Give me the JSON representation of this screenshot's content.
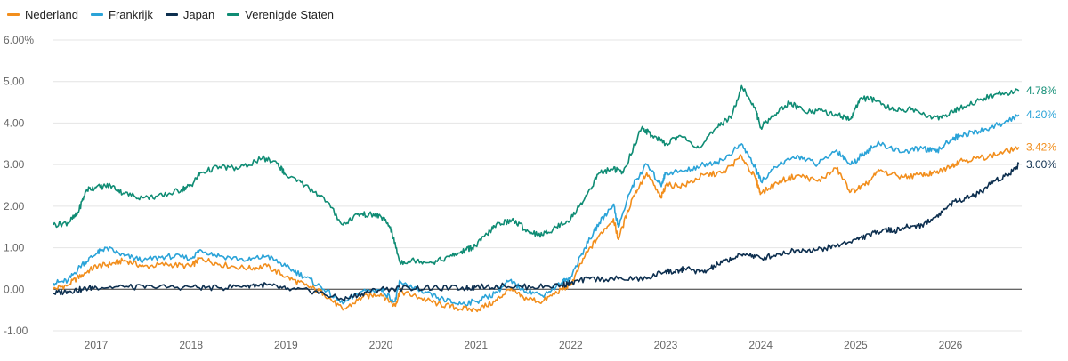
{
  "chart_data": {
    "type": "line",
    "title": "",
    "xlabel": "",
    "ylabel": "",
    "legend_position": "top-left",
    "grid": true,
    "x_range": [
      2016.55,
      2026.75
    ],
    "ylim": [
      -1.0,
      6.0
    ],
    "y_ticks": [
      {
        "value": 6.0,
        "label": "6.00%"
      },
      {
        "value": 5.0,
        "label": "5.00"
      },
      {
        "value": 4.0,
        "label": "4.00"
      },
      {
        "value": 3.0,
        "label": "3.00"
      },
      {
        "value": 2.0,
        "label": "2.00"
      },
      {
        "value": 1.0,
        "label": "1.00"
      },
      {
        "value": 0.0,
        "label": "0.00"
      },
      {
        "value": -1.0,
        "label": "-1.00"
      }
    ],
    "x_ticks": [
      {
        "value": 2017.0,
        "label": "2017"
      },
      {
        "value": 2018.0,
        "label": "2018"
      },
      {
        "value": 2019.0,
        "label": "2019"
      },
      {
        "value": 2020.0,
        "label": "2020"
      },
      {
        "value": 2021.0,
        "label": "2021"
      },
      {
        "value": 2022.0,
        "label": "2022"
      },
      {
        "value": 2023.0,
        "label": "2023"
      },
      {
        "value": 2024.0,
        "label": "2024"
      },
      {
        "value": 2025.0,
        "label": "2025"
      },
      {
        "value": 2026.0,
        "label": "2026"
      }
    ],
    "series": [
      {
        "name": "Nederland",
        "color": "#f28e1c",
        "end_label": "3.42%",
        "points": [
          [
            2016.55,
            0.0
          ],
          [
            2016.7,
            0.1
          ],
          [
            2016.85,
            0.35
          ],
          [
            2017.0,
            0.55
          ],
          [
            2017.15,
            0.6
          ],
          [
            2017.3,
            0.7
          ],
          [
            2017.5,
            0.55
          ],
          [
            2017.75,
            0.6
          ],
          [
            2018.0,
            0.55
          ],
          [
            2018.1,
            0.75
          ],
          [
            2018.3,
            0.6
          ],
          [
            2018.6,
            0.5
          ],
          [
            2018.8,
            0.55
          ],
          [
            2019.0,
            0.3
          ],
          [
            2019.2,
            0.1
          ],
          [
            2019.4,
            -0.1
          ],
          [
            2019.6,
            -0.5
          ],
          [
            2019.8,
            -0.2
          ],
          [
            2020.0,
            -0.1
          ],
          [
            2020.15,
            -0.4
          ],
          [
            2020.2,
            -0.05
          ],
          [
            2020.4,
            -0.2
          ],
          [
            2020.6,
            -0.35
          ],
          [
            2020.8,
            -0.45
          ],
          [
            2021.0,
            -0.5
          ],
          [
            2021.2,
            -0.3
          ],
          [
            2021.35,
            0.0
          ],
          [
            2021.5,
            -0.2
          ],
          [
            2021.7,
            -0.3
          ],
          [
            2021.9,
            0.0
          ],
          [
            2022.0,
            0.1
          ],
          [
            2022.15,
            0.8
          ],
          [
            2022.3,
            1.3
          ],
          [
            2022.45,
            1.7
          ],
          [
            2022.5,
            1.2
          ],
          [
            2022.65,
            2.2
          ],
          [
            2022.8,
            2.8
          ],
          [
            2022.95,
            2.2
          ],
          [
            2023.0,
            2.5
          ],
          [
            2023.2,
            2.5
          ],
          [
            2023.4,
            2.75
          ],
          [
            2023.6,
            2.8
          ],
          [
            2023.8,
            3.2
          ],
          [
            2023.95,
            2.65
          ],
          [
            2024.0,
            2.3
          ],
          [
            2024.2,
            2.6
          ],
          [
            2024.4,
            2.75
          ],
          [
            2024.6,
            2.6
          ],
          [
            2024.8,
            2.9
          ],
          [
            2024.95,
            2.35
          ],
          [
            2025.1,
            2.5
          ],
          [
            2025.25,
            2.85
          ],
          [
            2025.5,
            2.7
          ],
          [
            2025.7,
            2.75
          ],
          [
            2025.85,
            2.8
          ],
          [
            2026.0,
            2.95
          ],
          [
            2026.1,
            3.1
          ],
          [
            2026.3,
            3.15
          ],
          [
            2026.5,
            3.25
          ],
          [
            2026.72,
            3.42
          ]
        ]
      },
      {
        "name": "Frankrijk",
        "color": "#2aa3d8",
        "end_label": "4.20%",
        "points": [
          [
            2016.55,
            0.15
          ],
          [
            2016.7,
            0.2
          ],
          [
            2016.85,
            0.6
          ],
          [
            2017.0,
            0.85
          ],
          [
            2017.1,
            1.0
          ],
          [
            2017.3,
            0.8
          ],
          [
            2017.5,
            0.7
          ],
          [
            2017.75,
            0.8
          ],
          [
            2018.0,
            0.75
          ],
          [
            2018.1,
            0.95
          ],
          [
            2018.3,
            0.8
          ],
          [
            2018.6,
            0.7
          ],
          [
            2018.8,
            0.8
          ],
          [
            2019.0,
            0.55
          ],
          [
            2019.2,
            0.3
          ],
          [
            2019.4,
            0.0
          ],
          [
            2019.6,
            -0.35
          ],
          [
            2019.8,
            -0.05
          ],
          [
            2020.0,
            0.0
          ],
          [
            2020.15,
            -0.3
          ],
          [
            2020.2,
            0.2
          ],
          [
            2020.4,
            -0.05
          ],
          [
            2020.6,
            -0.2
          ],
          [
            2020.8,
            -0.35
          ],
          [
            2021.0,
            -0.3
          ],
          [
            2021.2,
            -0.1
          ],
          [
            2021.35,
            0.2
          ],
          [
            2021.5,
            0.0
          ],
          [
            2021.7,
            -0.15
          ],
          [
            2021.9,
            0.15
          ],
          [
            2022.0,
            0.3
          ],
          [
            2022.15,
            1.0
          ],
          [
            2022.3,
            1.6
          ],
          [
            2022.45,
            2.05
          ],
          [
            2022.5,
            1.5
          ],
          [
            2022.65,
            2.5
          ],
          [
            2022.8,
            3.0
          ],
          [
            2022.95,
            2.5
          ],
          [
            2023.0,
            2.8
          ],
          [
            2023.2,
            2.85
          ],
          [
            2023.4,
            3.0
          ],
          [
            2023.6,
            3.1
          ],
          [
            2023.8,
            3.5
          ],
          [
            2023.95,
            2.9
          ],
          [
            2024.0,
            2.6
          ],
          [
            2024.2,
            3.0
          ],
          [
            2024.4,
            3.2
          ],
          [
            2024.6,
            3.0
          ],
          [
            2024.8,
            3.35
          ],
          [
            2024.95,
            3.0
          ],
          [
            2025.1,
            3.3
          ],
          [
            2025.25,
            3.5
          ],
          [
            2025.5,
            3.3
          ],
          [
            2025.7,
            3.4
          ],
          [
            2025.85,
            3.3
          ],
          [
            2026.0,
            3.6
          ],
          [
            2026.1,
            3.7
          ],
          [
            2026.3,
            3.8
          ],
          [
            2026.5,
            3.95
          ],
          [
            2026.72,
            4.2
          ]
        ]
      },
      {
        "name": "Japan",
        "color": "#0d2f4f",
        "end_label": "3.00%",
        "points": [
          [
            2016.55,
            -0.1
          ],
          [
            2016.7,
            -0.05
          ],
          [
            2016.85,
            0.0
          ],
          [
            2017.0,
            0.05
          ],
          [
            2017.3,
            0.05
          ],
          [
            2017.6,
            0.05
          ],
          [
            2018.0,
            0.05
          ],
          [
            2018.3,
            0.03
          ],
          [
            2018.6,
            0.1
          ],
          [
            2018.8,
            0.1
          ],
          [
            2019.0,
            0.0
          ],
          [
            2019.3,
            -0.05
          ],
          [
            2019.6,
            -0.25
          ],
          [
            2019.8,
            -0.1
          ],
          [
            2020.0,
            0.0
          ],
          [
            2020.3,
            0.03
          ],
          [
            2020.6,
            0.03
          ],
          [
            2020.9,
            0.03
          ],
          [
            2021.0,
            0.05
          ],
          [
            2021.3,
            0.08
          ],
          [
            2021.6,
            0.05
          ],
          [
            2021.9,
            0.1
          ],
          [
            2022.0,
            0.15
          ],
          [
            2022.2,
            0.25
          ],
          [
            2022.5,
            0.25
          ],
          [
            2022.8,
            0.25
          ],
          [
            2023.0,
            0.45
          ],
          [
            2023.1,
            0.4
          ],
          [
            2023.2,
            0.5
          ],
          [
            2023.4,
            0.4
          ],
          [
            2023.55,
            0.6
          ],
          [
            2023.7,
            0.75
          ],
          [
            2023.85,
            0.85
          ],
          [
            2024.0,
            0.75
          ],
          [
            2024.2,
            0.85
          ],
          [
            2024.4,
            0.95
          ],
          [
            2024.6,
            0.95
          ],
          [
            2024.8,
            1.05
          ],
          [
            2025.0,
            1.2
          ],
          [
            2025.15,
            1.3
          ],
          [
            2025.3,
            1.45
          ],
          [
            2025.4,
            1.4
          ],
          [
            2025.55,
            1.5
          ],
          [
            2025.7,
            1.55
          ],
          [
            2025.85,
            1.75
          ],
          [
            2026.0,
            2.05
          ],
          [
            2026.15,
            2.2
          ],
          [
            2026.3,
            2.3
          ],
          [
            2026.45,
            2.6
          ],
          [
            2026.6,
            2.75
          ],
          [
            2026.72,
            3.0
          ]
        ]
      },
      {
        "name": "Verenigde Staten",
        "color": "#0f8c74",
        "end_label": "4.78%",
        "points": [
          [
            2016.55,
            1.55
          ],
          [
            2016.7,
            1.6
          ],
          [
            2016.8,
            1.8
          ],
          [
            2016.9,
            2.4
          ],
          [
            2017.0,
            2.45
          ],
          [
            2017.15,
            2.5
          ],
          [
            2017.3,
            2.3
          ],
          [
            2017.5,
            2.2
          ],
          [
            2017.7,
            2.25
          ],
          [
            2017.9,
            2.4
          ],
          [
            2018.0,
            2.5
          ],
          [
            2018.1,
            2.8
          ],
          [
            2018.3,
            2.95
          ],
          [
            2018.5,
            2.9
          ],
          [
            2018.75,
            3.15
          ],
          [
            2018.9,
            3.05
          ],
          [
            2019.0,
            2.75
          ],
          [
            2019.2,
            2.5
          ],
          [
            2019.4,
            2.2
          ],
          [
            2019.6,
            1.55
          ],
          [
            2019.75,
            1.8
          ],
          [
            2019.9,
            1.8
          ],
          [
            2020.0,
            1.75
          ],
          [
            2020.1,
            1.5
          ],
          [
            2020.2,
            0.65
          ],
          [
            2020.35,
            0.7
          ],
          [
            2020.55,
            0.65
          ],
          [
            2020.75,
            0.8
          ],
          [
            2020.9,
            0.95
          ],
          [
            2021.0,
            1.05
          ],
          [
            2021.15,
            1.4
          ],
          [
            2021.25,
            1.6
          ],
          [
            2021.4,
            1.65
          ],
          [
            2021.55,
            1.4
          ],
          [
            2021.7,
            1.3
          ],
          [
            2021.85,
            1.5
          ],
          [
            2022.0,
            1.7
          ],
          [
            2022.15,
            2.2
          ],
          [
            2022.3,
            2.8
          ],
          [
            2022.45,
            2.9
          ],
          [
            2022.55,
            2.8
          ],
          [
            2022.75,
            3.9
          ],
          [
            2022.85,
            3.7
          ],
          [
            2023.0,
            3.5
          ],
          [
            2023.15,
            3.7
          ],
          [
            2023.35,
            3.4
          ],
          [
            2023.55,
            3.9
          ],
          [
            2023.7,
            4.2
          ],
          [
            2023.8,
            4.9
          ],
          [
            2023.95,
            4.3
          ],
          [
            2024.0,
            3.9
          ],
          [
            2024.15,
            4.2
          ],
          [
            2024.3,
            4.5
          ],
          [
            2024.45,
            4.3
          ],
          [
            2024.6,
            4.3
          ],
          [
            2024.8,
            4.2
          ],
          [
            2024.95,
            4.1
          ],
          [
            2025.05,
            4.6
          ],
          [
            2025.2,
            4.55
          ],
          [
            2025.4,
            4.3
          ],
          [
            2025.6,
            4.35
          ],
          [
            2025.8,
            4.1
          ],
          [
            2025.95,
            4.2
          ],
          [
            2026.1,
            4.35
          ],
          [
            2026.3,
            4.55
          ],
          [
            2026.5,
            4.7
          ],
          [
            2026.72,
            4.78
          ]
        ]
      }
    ]
  }
}
